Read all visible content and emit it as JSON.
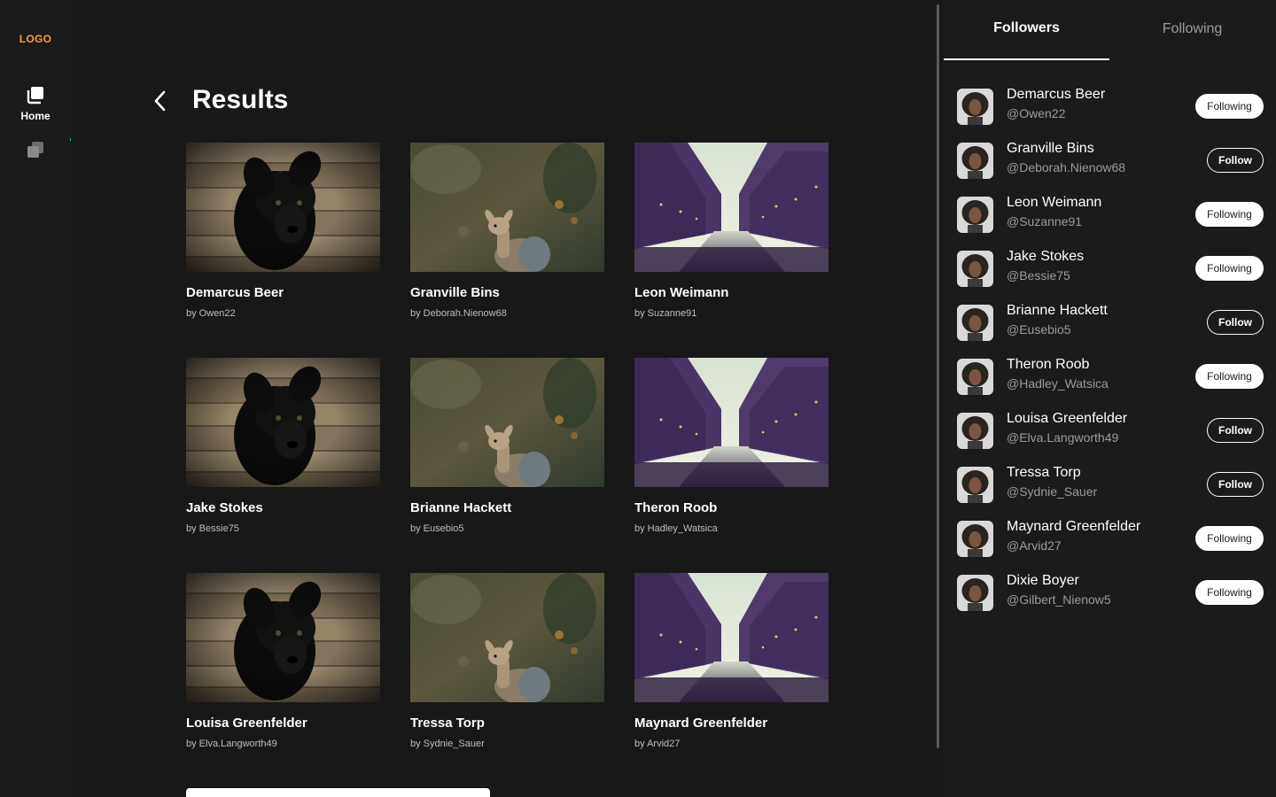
{
  "nav": {
    "logo": "LOGO",
    "home_label": "Home",
    "accent_dot_color": "#27c4f5",
    "logo_color": "#ff9b33"
  },
  "main": {
    "title": "Results",
    "cards": [
      {
        "title": "Demarcus Beer",
        "by": "by Owen22",
        "image": "black-dog"
      },
      {
        "title": "Granville Bins",
        "by": "by Deborah.Nienow68",
        "image": "deer-forest"
      },
      {
        "title": "Leon Weimann",
        "by": "by Suzanne91",
        "image": "city-canal"
      },
      {
        "title": "Jake Stokes",
        "by": "by Bessie75",
        "image": "black-dog"
      },
      {
        "title": "Brianne Hackett",
        "by": "by Eusebio5",
        "image": "deer-forest"
      },
      {
        "title": "Theron Roob",
        "by": "by Hadley_Watsica",
        "image": "city-canal"
      },
      {
        "title": "Louisa Greenfelder",
        "by": "by Elva.Langworth49",
        "image": "black-dog"
      },
      {
        "title": "Tressa Torp",
        "by": "by Sydnie_Sauer",
        "image": "deer-forest"
      },
      {
        "title": "Maynard Greenfelder",
        "by": "by Arvid27",
        "image": "city-canal"
      }
    ]
  },
  "panel": {
    "tabs": [
      {
        "label": "Followers",
        "active": true
      },
      {
        "label": "Following",
        "active": false
      }
    ],
    "users": [
      {
        "name": "Demarcus Beer",
        "handle": "@Owen22",
        "button": "Following"
      },
      {
        "name": "Granville Bins",
        "handle": "@Deborah.Nienow68",
        "button": "Follow"
      },
      {
        "name": "Leon Weimann",
        "handle": "@Suzanne91",
        "button": "Following"
      },
      {
        "name": "Jake Stokes",
        "handle": "@Bessie75",
        "button": "Following"
      },
      {
        "name": "Brianne Hackett",
        "handle": "@Eusebio5",
        "button": "Follow"
      },
      {
        "name": "Theron Roob",
        "handle": "@Hadley_Watsica",
        "button": "Following"
      },
      {
        "name": "Louisa Greenfelder",
        "handle": "@Elva.Langworth49",
        "button": "Follow"
      },
      {
        "name": "Tressa Torp",
        "handle": "@Sydnie_Sauer",
        "button": "Follow"
      },
      {
        "name": "Maynard Greenfelder",
        "handle": "@Arvid27",
        "button": "Following"
      },
      {
        "name": "Dixie Boyer",
        "handle": "@Gilbert_Nienow5",
        "button": "Following"
      }
    ]
  }
}
